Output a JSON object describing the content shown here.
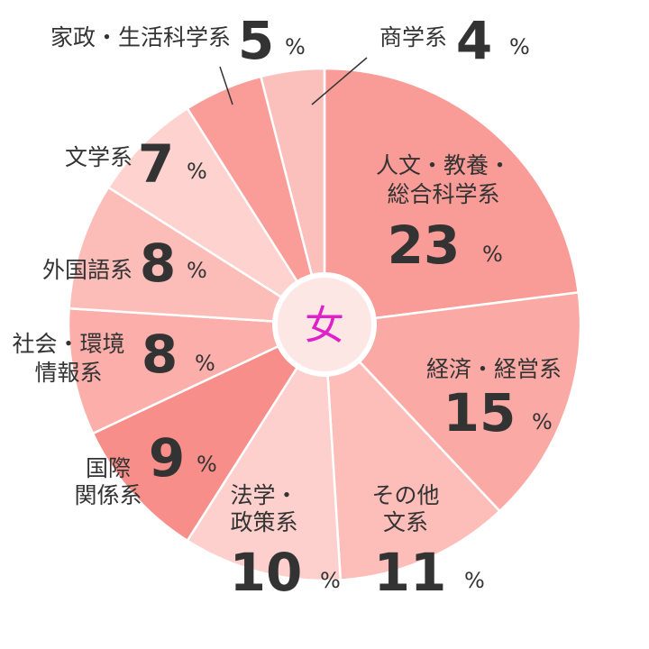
{
  "chart_data": {
    "type": "pie",
    "center_label": "女",
    "unit": "%",
    "slices": [
      {
        "label": "人文・教養・総合科学系",
        "value": 23,
        "color": "#f99b96"
      },
      {
        "label": "経済・経営系",
        "value": 15,
        "color": "#fba9a5"
      },
      {
        "label": "その他文系",
        "value": 11,
        "color": "#fdbdb9"
      },
      {
        "label": "法学・政策系",
        "value": 10,
        "color": "#fdd0cd"
      },
      {
        "label": "国際関係系",
        "value": 9,
        "color": "#f78e8a"
      },
      {
        "label": "社会・環境情報系",
        "value": 8,
        "color": "#fcaeaa"
      },
      {
        "label": "外国語系",
        "value": 8,
        "color": "#fcbcb8"
      },
      {
        "label": "文学系",
        "value": 7,
        "color": "#fdd2cf"
      },
      {
        "label": "家政・生活科学系",
        "value": 5,
        "color": "#fa9c97"
      },
      {
        "label": "商学系",
        "value": 4,
        "color": "#fcc0bc"
      }
    ]
  }
}
